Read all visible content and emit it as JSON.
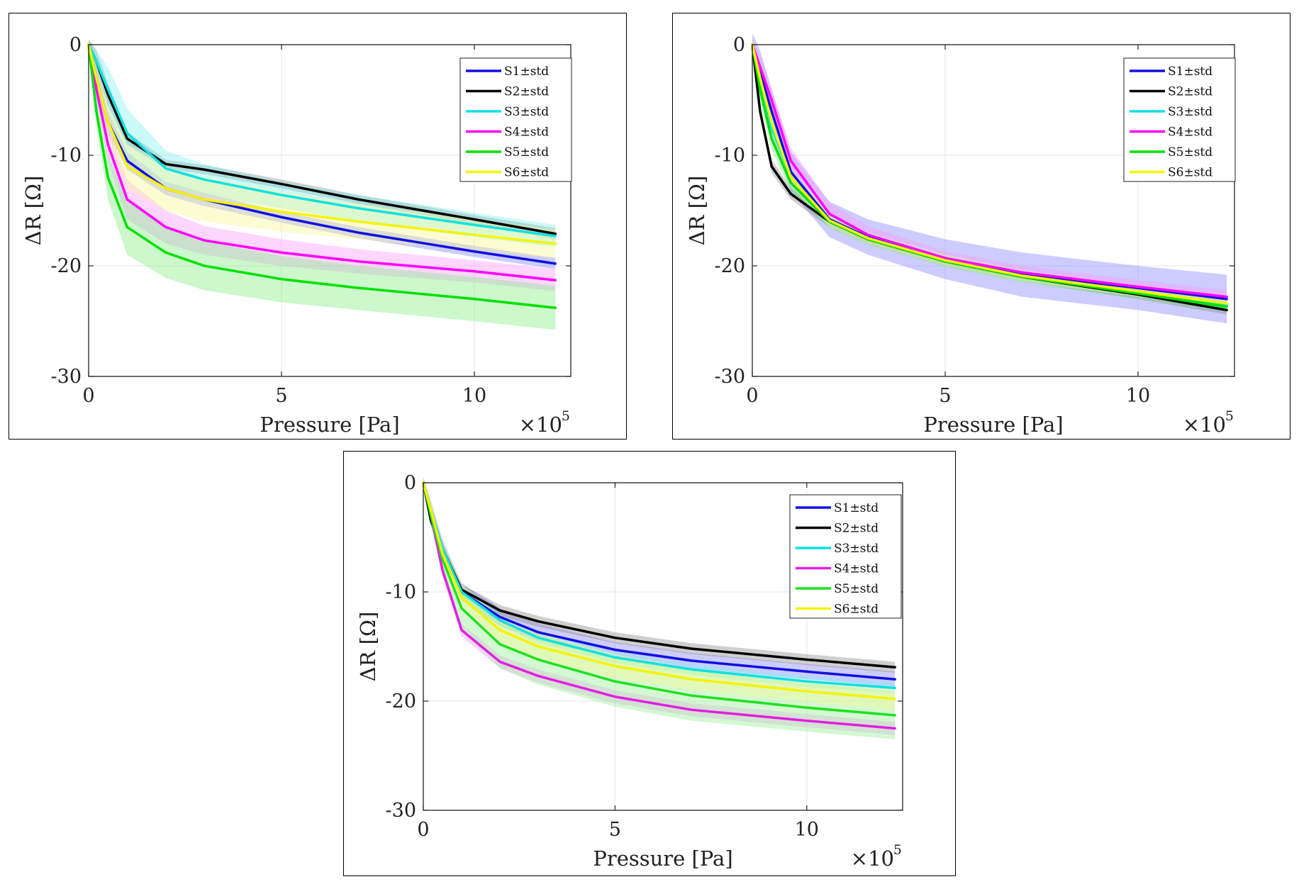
{
  "figure": {
    "legend_suffix": "±std"
  },
  "chart_data": [
    {
      "type": "line",
      "panel": "top-left",
      "title": "",
      "xlabel": "Pressure [Pa]",
      "ylabel": "ΔR [Ω]",
      "x_multiplier_label": "×10",
      "x_multiplier_exp": "5",
      "xlim": [
        0,
        12.5
      ],
      "ylim": [
        -30,
        0
      ],
      "xticks": [
        0,
        5,
        10
      ],
      "xtick_labels": [
        "0",
        "5",
        "10"
      ],
      "yticks": [
        0,
        -10,
        -20,
        -30
      ],
      "ytick_labels": [
        "0",
        "-10",
        "-20",
        "-30"
      ],
      "grid": true,
      "legend_position": "top-right",
      "x": [
        0,
        0.2,
        0.5,
        1,
        2,
        3,
        5,
        7,
        10,
        12.1
      ],
      "series": [
        {
          "name": "S1±std",
          "color": "#1010e0",
          "band": "#8080ff",
          "values": [
            0,
            -3,
            -7,
            -10.5,
            -13,
            -14,
            -15.6,
            -17,
            -18.7,
            -19.8
          ],
          "std": [
            0.5,
            1,
            1,
            0.8,
            0.6,
            0.6,
            0.5,
            0.5,
            0.5,
            0.5
          ]
        },
        {
          "name": "S2±std",
          "color": "#000000",
          "band": "#888888",
          "values": [
            0,
            -1.5,
            -4.5,
            -8.5,
            -10.8,
            -11.3,
            -12.6,
            -14,
            -15.8,
            -17.1
          ],
          "std": [
            0.5,
            1,
            1,
            0.6,
            0.4,
            0.4,
            0.4,
            0.4,
            0.4,
            0.5
          ]
        },
        {
          "name": "S3±std",
          "color": "#10e0e0",
          "band": "#80f0f0",
          "values": [
            0,
            -1.5,
            -4,
            -8,
            -11.2,
            -12.2,
            -13.6,
            -14.8,
            -16.3,
            -17.3
          ],
          "std": [
            0.5,
            1,
            2,
            2.2,
            1.6,
            1.4,
            1.2,
            1.2,
            1.1,
            1
          ]
        },
        {
          "name": "S4±std",
          "color": "#ff00ff",
          "band": "#ff99ff",
          "values": [
            0,
            -4,
            -9,
            -14,
            -16.5,
            -17.7,
            -18.8,
            -19.6,
            -20.5,
            -21.3
          ],
          "std": [
            0.5,
            1,
            1.5,
            1.8,
            1.5,
            1.3,
            1.2,
            1.1,
            1,
            1
          ]
        },
        {
          "name": "S5±std",
          "color": "#00e000",
          "band": "#80ee80",
          "values": [
            0,
            -6,
            -12,
            -16.5,
            -18.8,
            -20,
            -21.2,
            -22,
            -23,
            -23.8
          ],
          "std": [
            0.5,
            1.5,
            2,
            2.5,
            2.3,
            2.2,
            2.1,
            2,
            2,
            2
          ]
        },
        {
          "name": "S6±std",
          "color": "#f4f400",
          "band": "#f8f890",
          "values": [
            0,
            -3,
            -7,
            -11,
            -13,
            -14,
            -15.1,
            -16,
            -17.2,
            -18
          ],
          "std": [
            0.5,
            1,
            1.5,
            2,
            2,
            2,
            1.8,
            1.6,
            1.4,
            1.3
          ]
        }
      ]
    },
    {
      "type": "line",
      "panel": "top-right",
      "title": "",
      "xlabel": "Pressure [Pa]",
      "ylabel": "ΔR [Ω]",
      "x_multiplier_label": "×10",
      "x_multiplier_exp": "5",
      "xlim": [
        0,
        12.5
      ],
      "ylim": [
        -30,
        0
      ],
      "xticks": [
        0,
        5,
        10
      ],
      "xtick_labels": [
        "0",
        "5",
        "10"
      ],
      "yticks": [
        0,
        -10,
        -20,
        -30
      ],
      "ytick_labels": [
        "0",
        "-10",
        "-20",
        "-30"
      ],
      "grid": true,
      "legend_position": "top-right",
      "x": [
        0,
        0.2,
        0.5,
        1,
        2,
        3,
        5,
        7,
        10,
        12.3
      ],
      "series": [
        {
          "name": "S1±std",
          "color": "#1010e0",
          "band": "#8080ff",
          "values": [
            0,
            -2.5,
            -6,
            -11.5,
            -15.8,
            -17.4,
            -19.4,
            -20.8,
            -22,
            -23
          ],
          "std": [
            1,
            2,
            2,
            1.8,
            1.6,
            1.6,
            1.8,
            2,
            2,
            2.2
          ]
        },
        {
          "name": "S2±std",
          "color": "#000000",
          "band": "#888888",
          "values": [
            0,
            -6,
            -11,
            -13.5,
            -16,
            -17.6,
            -19.6,
            -21,
            -22.6,
            -24
          ],
          "std": [
            0.5,
            0.6,
            0.6,
            0.5,
            0.5,
            0.4,
            0.4,
            0.4,
            0.4,
            0.4
          ]
        },
        {
          "name": "S3±std",
          "color": "#10e0e0",
          "band": "#80f0f0",
          "values": [
            0,
            -3,
            -7.5,
            -12,
            -15.9,
            -17.5,
            -19.5,
            -20.9,
            -22.3,
            -23.5
          ],
          "std": [
            0.5,
            1,
            1,
            0.8,
            0.6,
            0.5,
            0.5,
            0.5,
            0.5,
            0.5
          ]
        },
        {
          "name": "S4±std",
          "color": "#ff00ff",
          "band": "#ff99ff",
          "values": [
            0,
            -2,
            -5,
            -10.5,
            -15.3,
            -17.2,
            -19.3,
            -20.6,
            -21.9,
            -22.8
          ],
          "std": [
            0.5,
            1,
            1,
            1.2,
            1,
            0.8,
            0.6,
            0.6,
            0.6,
            0.6
          ]
        },
        {
          "name": "S5±std",
          "color": "#00e000",
          "band": "#80ee80",
          "values": [
            0,
            -4,
            -8.5,
            -12.5,
            -16,
            -17.6,
            -19.6,
            -21,
            -22.5,
            -23.7
          ],
          "std": [
            0.5,
            1,
            1,
            0.8,
            0.6,
            0.5,
            0.5,
            0.5,
            0.5,
            0.5
          ]
        },
        {
          "name": "S6±std",
          "color": "#f4f400",
          "band": "#f8f890",
          "values": [
            0,
            -3,
            -7,
            -12,
            -15.9,
            -17.5,
            -19.5,
            -20.9,
            -22.3,
            -23.4
          ],
          "std": [
            0.5,
            1,
            1,
            0.8,
            0.6,
            0.5,
            0.5,
            0.5,
            0.5,
            0.5
          ]
        }
      ]
    },
    {
      "type": "line",
      "panel": "bottom-center",
      "title": "",
      "xlabel": "Pressure [Pa]",
      "ylabel": "ΔR [Ω]",
      "x_multiplier_label": "×10",
      "x_multiplier_exp": "5",
      "xlim": [
        0,
        12.5
      ],
      "ylim": [
        -30,
        0
      ],
      "xticks": [
        0,
        5,
        10
      ],
      "xtick_labels": [
        "0",
        "5",
        "10"
      ],
      "yticks": [
        0,
        -10,
        -20,
        -30
      ],
      "ytick_labels": [
        "0",
        "-10",
        "-20",
        "-30"
      ],
      "grid": true,
      "legend_position": "top-right",
      "x": [
        0,
        0.2,
        0.5,
        1,
        2,
        3,
        5,
        7,
        10,
        12.3
      ],
      "series": [
        {
          "name": "S1±std",
          "color": "#1010e0",
          "band": "#8080ff",
          "values": [
            0,
            -2.5,
            -6,
            -10,
            -12.3,
            -13.7,
            -15.3,
            -16.3,
            -17.3,
            -18
          ],
          "std": [
            0.5,
            0.8,
            0.8,
            0.8,
            0.8,
            0.8,
            0.7,
            0.7,
            0.7,
            0.7
          ]
        },
        {
          "name": "S2±std",
          "color": "#000000",
          "band": "#888888",
          "values": [
            0,
            -3.5,
            -6,
            -9.8,
            -11.7,
            -12.7,
            -14.2,
            -15.2,
            -16.2,
            -16.9
          ],
          "std": [
            0.5,
            0.5,
            0.5,
            0.5,
            0.5,
            0.5,
            0.5,
            0.5,
            0.5,
            0.5
          ]
        },
        {
          "name": "S3±std",
          "color": "#10e0e0",
          "band": "#80f0f0",
          "values": [
            0,
            -2.5,
            -6,
            -10,
            -12.6,
            -14.2,
            -16,
            -17.1,
            -18.2,
            -18.8
          ],
          "std": [
            0.5,
            0.6,
            0.6,
            0.6,
            0.5,
            0.5,
            0.5,
            0.5,
            0.5,
            0.5
          ]
        },
        {
          "name": "S4±std",
          "color": "#e020e0",
          "band": "#ff99ff",
          "values": [
            0,
            -3,
            -8,
            -13.5,
            -16.4,
            -17.7,
            -19.6,
            -20.8,
            -21.8,
            -22.5
          ],
          "std": [
            0.5,
            0.6,
            0.6,
            0.6,
            0.6,
            0.6,
            0.6,
            0.6,
            0.6,
            0.6
          ]
        },
        {
          "name": "S5±std",
          "color": "#20e020",
          "band": "#90f090",
          "values": [
            0,
            -3,
            -7,
            -11.5,
            -14.8,
            -16.2,
            -18.2,
            -19.5,
            -20.6,
            -21.3
          ],
          "std": [
            0.5,
            1,
            1.5,
            2,
            2.2,
            2.3,
            2.3,
            2.3,
            2.2,
            2.2
          ]
        },
        {
          "name": "S6±std",
          "color": "#f4f400",
          "band": "#f8f890",
          "values": [
            0,
            -2.5,
            -6.5,
            -10.5,
            -13.5,
            -15,
            -16.8,
            -18,
            -19.1,
            -19.8
          ],
          "std": [
            0.5,
            0.8,
            1,
            1.2,
            1.2,
            1.2,
            1.1,
            1,
            1,
            1
          ]
        }
      ]
    }
  ]
}
